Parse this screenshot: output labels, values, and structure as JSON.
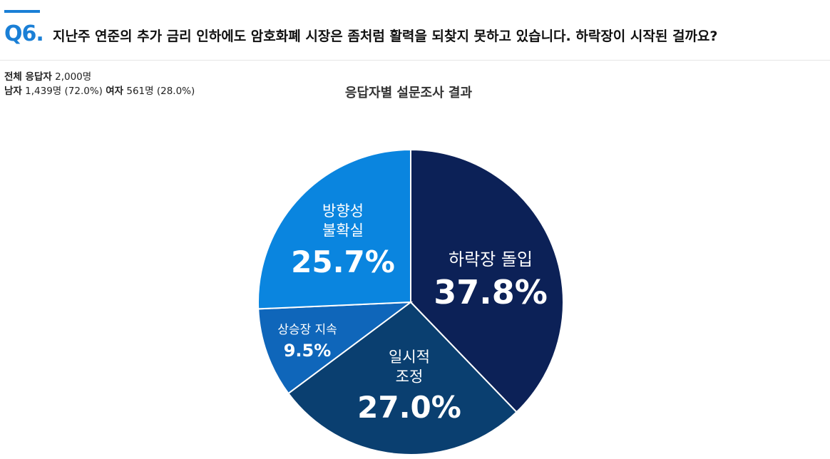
{
  "question": {
    "number": "Q6.",
    "text": "지난주 연준의 추가 금리 인하에도 암호화폐 시장은 좀처럼 활력을 되찾지 못하고 있습니다. 하락장이 시작된 걸까요?"
  },
  "respondents": {
    "total_label": "전체 응답자",
    "total_value": "2,000명",
    "male_label": "남자",
    "male_value": "1,439명 (72.0%)",
    "female_label": "여자",
    "female_value": "561명 (28.0%)"
  },
  "chart_data": {
    "type": "pie",
    "title": "응답자별 설문조사 결과",
    "slices": [
      {
        "label": "하락장 돌입",
        "value": 37.8,
        "value_label": "37.8%",
        "color": "#0c2157"
      },
      {
        "label": "일시적 조정",
        "value": 27.0,
        "value_label": "27.0%",
        "color": "#0a3f70"
      },
      {
        "label": "상승장 지속",
        "value": 9.5,
        "value_label": "9.5%",
        "color": "#0f66ba"
      },
      {
        "label": "방향성 불확실",
        "value": 25.7,
        "value_label": "25.7%",
        "color": "#0a85df"
      }
    ]
  }
}
